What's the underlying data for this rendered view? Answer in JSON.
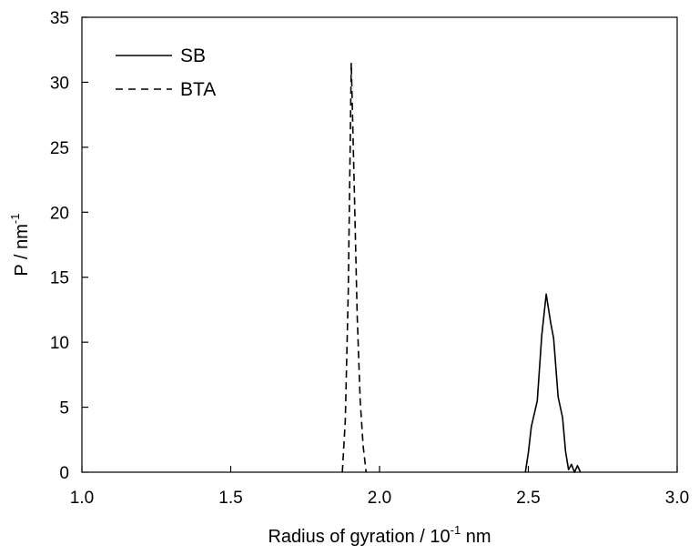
{
  "chart_data": {
    "type": "line",
    "xlabel": "Radius of gyration / 10",
    "xlabel_sup": "-1",
    "xlabel_tail": " nm",
    "ylabel": "P / nm",
    "ylabel_sup": "-1",
    "xlim": [
      1.0,
      3.0
    ],
    "ylim": [
      0,
      35
    ],
    "xticks": [
      "1.0",
      "1.5",
      "2.0",
      "2.5",
      "3.0"
    ],
    "yticks": [
      "0",
      "5",
      "10",
      "15",
      "20",
      "25",
      "30",
      "35"
    ],
    "grid": false,
    "legend_position": "top-left",
    "series": [
      {
        "name": "SB",
        "style": "solid",
        "color": "#000000",
        "x": [
          2.49,
          2.5,
          2.51,
          2.53,
          2.545,
          2.56,
          2.575,
          2.585,
          2.6,
          2.615,
          2.625,
          2.635,
          2.645,
          2.655,
          2.665,
          2.675
        ],
        "y": [
          0,
          1.5,
          3.5,
          5.5,
          10.5,
          13.7,
          11.5,
          10.3,
          5.8,
          4.2,
          1.6,
          0.2,
          0.6,
          0,
          0.5,
          0
        ]
      },
      {
        "name": "BTA",
        "style": "dashed",
        "color": "#000000",
        "x": [
          1.875,
          1.885,
          1.895,
          1.905,
          1.915,
          1.925,
          1.935,
          1.945,
          1.955
        ],
        "y": [
          0,
          4,
          14,
          31.5,
          22,
          12,
          5.5,
          2,
          0
        ]
      }
    ]
  }
}
